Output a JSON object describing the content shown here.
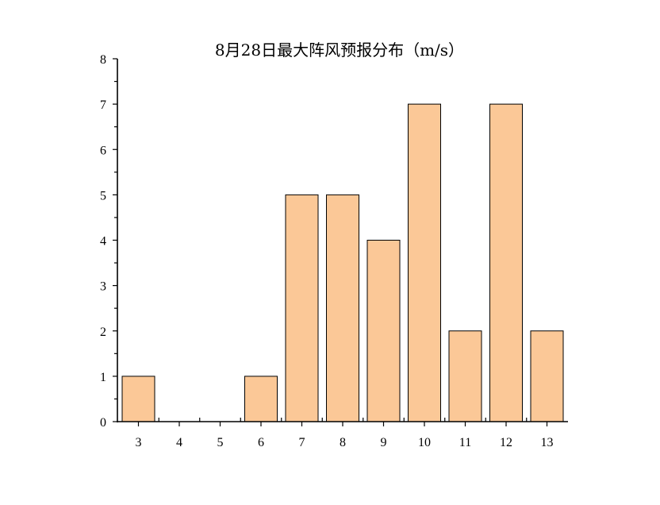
{
  "chart_data": {
    "type": "bar",
    "title": "8月28日最大阵风预报分布（m/s）",
    "categories": [
      "3",
      "4",
      "5",
      "6",
      "7",
      "8",
      "9",
      "10",
      "11",
      "12",
      "13"
    ],
    "values": [
      1,
      0,
      0,
      1,
      5,
      5,
      4,
      7,
      2,
      7,
      2
    ],
    "ylim": [
      0,
      8
    ],
    "yticks": [
      "0",
      "1",
      "2",
      "3",
      "4",
      "5",
      "6",
      "7",
      "8"
    ],
    "xlabel": "",
    "ylabel": "",
    "grid": false,
    "bar_color": "#FBC897"
  }
}
